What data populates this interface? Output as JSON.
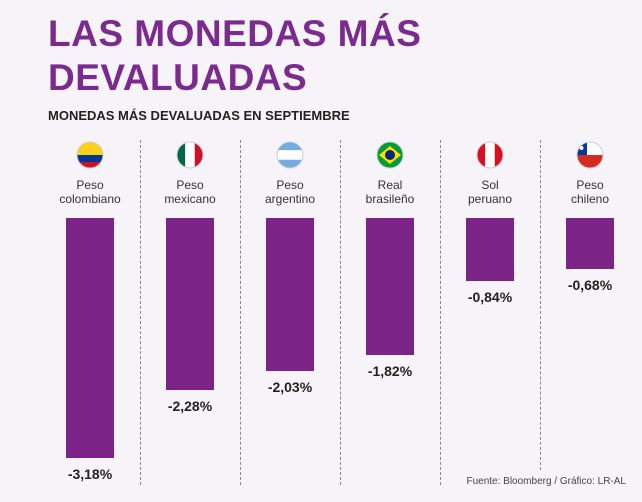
{
  "chart_data": {
    "type": "bar",
    "title": "LAS MONEDAS MÁS DEVALUADAS",
    "subtitle": "MONEDAS MÁS DEVALUADAS EN SEPTIEMBRE",
    "source": "Fuente: Bloomberg / Gráfico: LR-AL",
    "categories": [
      "Peso colombiano",
      "Peso mexicano",
      "Peso argentino",
      "Real brasileño",
      "Sol peruano",
      "Peso chileno"
    ],
    "values": [
      -3.18,
      -2.28,
      -2.03,
      -1.82,
      -0.84,
      -0.68
    ],
    "value_labels": [
      "-3,18%",
      "-2,28%",
      "-2,03%",
      "-1,82%",
      "-0,84%",
      "-0,68%"
    ],
    "color": "#7b2387"
  }
}
